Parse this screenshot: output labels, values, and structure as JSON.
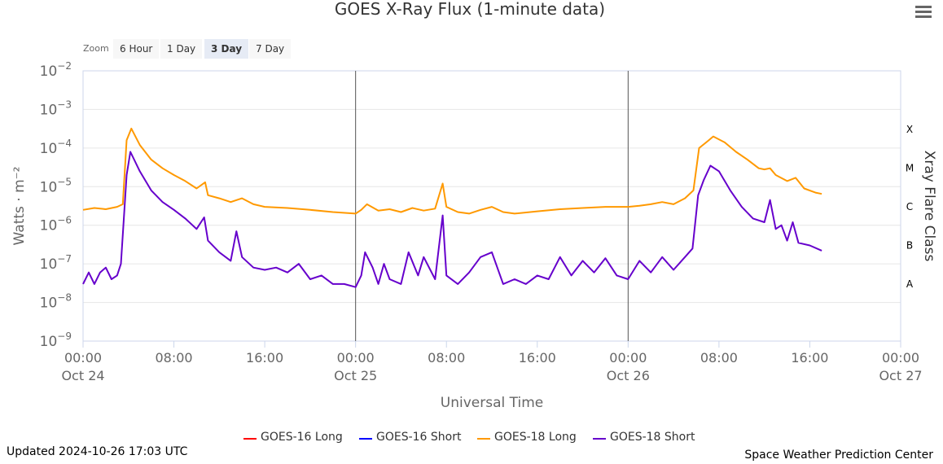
{
  "chart_data": {
    "type": "line",
    "title": "GOES X-Ray Flux (1-minute data)",
    "xlabel": "Universal Time",
    "ylabel": "Watts · m⁻²",
    "y2label": "Xray Flare Class",
    "yscale": "log",
    "ylim": [
      1e-09,
      0.01
    ],
    "xlim": [
      "2024-10-24 00:00",
      "2024-10-27 00:00"
    ],
    "y_ticks": [
      {
        "base": "10",
        "exp": "−2",
        "value": 0.01
      },
      {
        "base": "10",
        "exp": "−3",
        "value": 0.001
      },
      {
        "base": "10",
        "exp": "−4",
        "value": 0.0001
      },
      {
        "base": "10",
        "exp": "−5",
        "value": 1e-05
      },
      {
        "base": "10",
        "exp": "−6",
        "value": 1e-06
      },
      {
        "base": "10",
        "exp": "−7",
        "value": 1e-07
      },
      {
        "base": "10",
        "exp": "−8",
        "value": 1e-08
      },
      {
        "base": "10",
        "exp": "−9",
        "value": 1e-09
      }
    ],
    "x_ticks": [
      {
        "time": "00:00",
        "date": "Oct 24",
        "x": "2024-10-24 00:00"
      },
      {
        "time": "08:00",
        "date": "",
        "x": "2024-10-24 08:00"
      },
      {
        "time": "16:00",
        "date": "",
        "x": "2024-10-24 16:00"
      },
      {
        "time": "00:00",
        "date": "Oct 25",
        "x": "2024-10-25 00:00"
      },
      {
        "time": "08:00",
        "date": "",
        "x": "2024-10-25 08:00"
      },
      {
        "time": "16:00",
        "date": "",
        "x": "2024-10-25 16:00"
      },
      {
        "time": "00:00",
        "date": "Oct 26",
        "x": "2024-10-26 00:00"
      },
      {
        "time": "08:00",
        "date": "",
        "x": "2024-10-26 08:00"
      },
      {
        "time": "16:00",
        "date": "",
        "x": "2024-10-26 16:00"
      },
      {
        "time": "00:00",
        "date": "Oct 27",
        "x": "2024-10-27 00:00"
      }
    ],
    "flare_classes": [
      {
        "label": "X",
        "value": 0.0003
      },
      {
        "label": "M",
        "value": 3e-05
      },
      {
        "label": "C",
        "value": 3e-06
      },
      {
        "label": "B",
        "value": 3e-07
      },
      {
        "label": "A",
        "value": 3e-08
      }
    ],
    "day_lines": [
      "2024-10-25 00:00",
      "2024-10-26 00:00"
    ],
    "grid": true,
    "legend_position": "bottom-center",
    "series": [
      {
        "name": "GOES-16 Long",
        "color": "#ff0000",
        "points": []
      },
      {
        "name": "GOES-16 Short",
        "color": "#0000ff",
        "points": []
      },
      {
        "name": "GOES-18 Long",
        "color": "#ff9900",
        "points": [
          [
            "2024-10-24 00:00",
            2.5e-06
          ],
          [
            "2024-10-24 01:00",
            2.8e-06
          ],
          [
            "2024-10-24 02:00",
            2.6e-06
          ],
          [
            "2024-10-24 03:00",
            3e-06
          ],
          [
            "2024-10-24 03:30",
            3.5e-06
          ],
          [
            "2024-10-24 03:50",
            0.00016
          ],
          [
            "2024-10-24 04:15",
            0.00032
          ],
          [
            "2024-10-24 05:00",
            0.00012
          ],
          [
            "2024-10-24 06:00",
            5e-05
          ],
          [
            "2024-10-24 07:00",
            3e-05
          ],
          [
            "2024-10-24 08:00",
            2e-05
          ],
          [
            "2024-10-24 09:00",
            1.4e-05
          ],
          [
            "2024-10-24 10:00",
            9e-06
          ],
          [
            "2024-10-24 10:45",
            1.3e-05
          ],
          [
            "2024-10-24 11:00",
            6e-06
          ],
          [
            "2024-10-24 12:00",
            5e-06
          ],
          [
            "2024-10-24 13:00",
            4e-06
          ],
          [
            "2024-10-24 14:00",
            5e-06
          ],
          [
            "2024-10-24 15:00",
            3.5e-06
          ],
          [
            "2024-10-24 16:00",
            3e-06
          ],
          [
            "2024-10-24 18:00",
            2.8e-06
          ],
          [
            "2024-10-24 20:00",
            2.5e-06
          ],
          [
            "2024-10-24 22:00",
            2.2e-06
          ],
          [
            "2024-10-25 00:00",
            2e-06
          ],
          [
            "2024-10-25 00:30",
            2.5e-06
          ],
          [
            "2024-10-25 01:00",
            3.5e-06
          ],
          [
            "2024-10-25 02:00",
            2.4e-06
          ],
          [
            "2024-10-25 03:00",
            2.6e-06
          ],
          [
            "2024-10-25 04:00",
            2.2e-06
          ],
          [
            "2024-10-25 05:00",
            2.8e-06
          ],
          [
            "2024-10-25 06:00",
            2.4e-06
          ],
          [
            "2024-10-25 07:00",
            2.7e-06
          ],
          [
            "2024-10-25 07:40",
            1.2e-05
          ],
          [
            "2024-10-25 08:00",
            3e-06
          ],
          [
            "2024-10-25 09:00",
            2.2e-06
          ],
          [
            "2024-10-25 10:00",
            2e-06
          ],
          [
            "2024-10-25 11:00",
            2.5e-06
          ],
          [
            "2024-10-25 12:00",
            3e-06
          ],
          [
            "2024-10-25 13:00",
            2.2e-06
          ],
          [
            "2024-10-25 14:00",
            2e-06
          ],
          [
            "2024-10-25 16:00",
            2.3e-06
          ],
          [
            "2024-10-25 18:00",
            2.6e-06
          ],
          [
            "2024-10-25 20:00",
            2.8e-06
          ],
          [
            "2024-10-25 22:00",
            3e-06
          ],
          [
            "2024-10-26 00:00",
            3e-06
          ],
          [
            "2024-10-26 01:00",
            3.2e-06
          ],
          [
            "2024-10-26 02:00",
            3.5e-06
          ],
          [
            "2024-10-26 03:00",
            4e-06
          ],
          [
            "2024-10-26 04:00",
            3.5e-06
          ],
          [
            "2024-10-26 05:00",
            5e-06
          ],
          [
            "2024-10-26 05:45",
            8e-06
          ],
          [
            "2024-10-26 06:15",
            0.0001
          ],
          [
            "2024-10-26 07:00",
            0.00015
          ],
          [
            "2024-10-26 07:30",
            0.0002
          ],
          [
            "2024-10-26 08:30",
            0.00014
          ],
          [
            "2024-10-26 09:30",
            8e-05
          ],
          [
            "2024-10-26 10:30",
            5e-05
          ],
          [
            "2024-10-26 11:30",
            3e-05
          ],
          [
            "2024-10-26 12:00",
            2.8e-05
          ],
          [
            "2024-10-26 12:30",
            3e-05
          ],
          [
            "2024-10-26 13:00",
            2e-05
          ],
          [
            "2024-10-26 14:00",
            1.4e-05
          ],
          [
            "2024-10-26 14:45",
            1.7e-05
          ],
          [
            "2024-10-26 15:30",
            9e-06
          ],
          [
            "2024-10-26 16:30",
            7e-06
          ],
          [
            "2024-10-26 17:03",
            6.5e-06
          ]
        ]
      },
      {
        "name": "GOES-18 Short",
        "color": "#6600cc",
        "points": [
          [
            "2024-10-24 00:00",
            3e-08
          ],
          [
            "2024-10-24 00:30",
            6e-08
          ],
          [
            "2024-10-24 01:00",
            3e-08
          ],
          [
            "2024-10-24 01:30",
            6e-08
          ],
          [
            "2024-10-24 02:00",
            8e-08
          ],
          [
            "2024-10-24 02:30",
            4e-08
          ],
          [
            "2024-10-24 03:00",
            5e-08
          ],
          [
            "2024-10-24 03:20",
            1e-07
          ],
          [
            "2024-10-24 03:50",
            2e-05
          ],
          [
            "2024-10-24 04:10",
            8e-05
          ],
          [
            "2024-10-24 05:00",
            2.5e-05
          ],
          [
            "2024-10-24 06:00",
            8e-06
          ],
          [
            "2024-10-24 07:00",
            4e-06
          ],
          [
            "2024-10-24 08:00",
            2.5e-06
          ],
          [
            "2024-10-24 09:00",
            1.5e-06
          ],
          [
            "2024-10-24 10:00",
            8e-07
          ],
          [
            "2024-10-24 10:40",
            1.6e-06
          ],
          [
            "2024-10-24 11:00",
            4e-07
          ],
          [
            "2024-10-24 12:00",
            2e-07
          ],
          [
            "2024-10-24 13:00",
            1.2e-07
          ],
          [
            "2024-10-24 13:30",
            7e-07
          ],
          [
            "2024-10-24 14:00",
            1.5e-07
          ],
          [
            "2024-10-24 15:00",
            8e-08
          ],
          [
            "2024-10-24 16:00",
            7e-08
          ],
          [
            "2024-10-24 17:00",
            8e-08
          ],
          [
            "2024-10-24 18:00",
            6e-08
          ],
          [
            "2024-10-24 19:00",
            1e-07
          ],
          [
            "2024-10-24 20:00",
            4e-08
          ],
          [
            "2024-10-24 21:00",
            5e-08
          ],
          [
            "2024-10-24 22:00",
            3e-08
          ],
          [
            "2024-10-24 23:00",
            3e-08
          ],
          [
            "2024-10-25 00:00",
            2.5e-08
          ],
          [
            "2024-10-25 00:30",
            5e-08
          ],
          [
            "2024-10-25 00:50",
            2e-07
          ],
          [
            "2024-10-25 01:30",
            8e-08
          ],
          [
            "2024-10-25 02:00",
            3e-08
          ],
          [
            "2024-10-25 02:30",
            1e-07
          ],
          [
            "2024-10-25 03:00",
            4e-08
          ],
          [
            "2024-10-25 04:00",
            3e-08
          ],
          [
            "2024-10-25 04:40",
            2e-07
          ],
          [
            "2024-10-25 05:30",
            5e-08
          ],
          [
            "2024-10-25 06:00",
            1.5e-07
          ],
          [
            "2024-10-25 07:00",
            4e-08
          ],
          [
            "2024-10-25 07:40",
            1.8e-06
          ],
          [
            "2024-10-25 08:00",
            5e-08
          ],
          [
            "2024-10-25 09:00",
            3e-08
          ],
          [
            "2024-10-25 10:00",
            6e-08
          ],
          [
            "2024-10-25 11:00",
            1.5e-07
          ],
          [
            "2024-10-25 12:00",
            2e-07
          ],
          [
            "2024-10-25 13:00",
            3e-08
          ],
          [
            "2024-10-25 14:00",
            4e-08
          ],
          [
            "2024-10-25 15:00",
            3e-08
          ],
          [
            "2024-10-25 16:00",
            5e-08
          ],
          [
            "2024-10-25 17:00",
            4e-08
          ],
          [
            "2024-10-25 18:00",
            1.5e-07
          ],
          [
            "2024-10-25 19:00",
            5e-08
          ],
          [
            "2024-10-25 20:00",
            1.2e-07
          ],
          [
            "2024-10-25 21:00",
            6e-08
          ],
          [
            "2024-10-25 22:00",
            1.4e-07
          ],
          [
            "2024-10-25 23:00",
            5e-08
          ],
          [
            "2024-10-26 00:00",
            4e-08
          ],
          [
            "2024-10-26 01:00",
            1.2e-07
          ],
          [
            "2024-10-26 02:00",
            6e-08
          ],
          [
            "2024-10-26 03:00",
            1.5e-07
          ],
          [
            "2024-10-26 04:00",
            7e-08
          ],
          [
            "2024-10-26 05:00",
            1.5e-07
          ],
          [
            "2024-10-26 05:40",
            2.5e-07
          ],
          [
            "2024-10-26 06:10",
            6e-06
          ],
          [
            "2024-10-26 06:40",
            1.5e-05
          ],
          [
            "2024-10-26 07:15",
            3.5e-05
          ],
          [
            "2024-10-26 08:00",
            2.5e-05
          ],
          [
            "2024-10-26 09:00",
            8e-06
          ],
          [
            "2024-10-26 10:00",
            3e-06
          ],
          [
            "2024-10-26 11:00",
            1.5e-06
          ],
          [
            "2024-10-26 12:00",
            1.2e-06
          ],
          [
            "2024-10-26 12:30",
            4.5e-06
          ],
          [
            "2024-10-26 13:00",
            8e-07
          ],
          [
            "2024-10-26 13:30",
            1e-06
          ],
          [
            "2024-10-26 14:00",
            4e-07
          ],
          [
            "2024-10-26 14:30",
            1.2e-06
          ],
          [
            "2024-10-26 15:00",
            3.5e-07
          ],
          [
            "2024-10-26 16:00",
            3e-07
          ],
          [
            "2024-10-26 17:03",
            2.2e-07
          ]
        ]
      }
    ]
  },
  "toolbar": {
    "zoom_label": "Zoom",
    "zoom_options": [
      "6 Hour",
      "1 Day",
      "3 Day",
      "7 Day"
    ],
    "active": "3 Day"
  },
  "footer": {
    "updated": "Updated 2024-10-26 17:03 UTC",
    "credit": "Space Weather Prediction Center"
  },
  "colors": {
    "grid": "#e6e6e6",
    "axis": "#ccd6eb",
    "day_line": "#555555",
    "zoom_active": "#e6ebf5"
  }
}
